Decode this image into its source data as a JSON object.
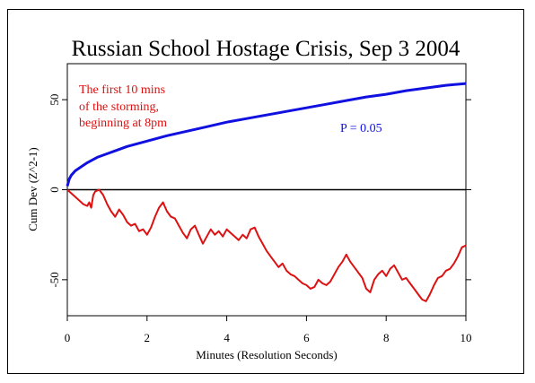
{
  "chart_data": {
    "type": "line",
    "title": "Russian School Hostage Crisis, Sep 3 2004",
    "xlabel": "Minutes (Resolution Seconds)",
    "ylabel": "Cum Dev (Z^2-1)",
    "xlim": [
      0,
      10
    ],
    "ylim": [
      -70,
      70
    ],
    "x_ticks": [
      "0",
      "2",
      "4",
      "6",
      "8",
      "10"
    ],
    "y_ticks": [
      "-50",
      "0",
      "50"
    ],
    "x_tick_values": [
      0,
      2,
      4,
      6,
      8,
      10
    ],
    "y_tick_values": [
      -50,
      0,
      50
    ],
    "grid": false,
    "zero_line": true,
    "annotations": {
      "red_text": [
        "The first 10 mins",
        "of the storming,",
        "beginning at 8pm"
      ],
      "blue_text": "P = 0.05"
    },
    "series": [
      {
        "color": "#1010e0",
        "x": [
          0,
          0.05,
          0.1,
          0.2,
          0.3,
          0.5,
          0.75,
          1.0,
          1.5,
          2.0,
          2.5,
          3.0,
          3.5,
          4.0,
          4.5,
          5.0,
          5.5,
          6.0,
          6.5,
          7.0,
          7.5,
          8.0,
          8.5,
          9.0,
          9.5,
          10.0
        ],
        "values": [
          2,
          6,
          8,
          10.5,
          12,
          15,
          18,
          20,
          24,
          27,
          30,
          32.5,
          35,
          37.5,
          39.5,
          41.5,
          43.5,
          45.5,
          47.5,
          49.5,
          51.5,
          53,
          55,
          56.5,
          58,
          59
        ]
      },
      {
        "color": "#dd1111",
        "x": [
          0,
          0.1,
          0.2,
          0.3,
          0.4,
          0.5,
          0.55,
          0.6,
          0.65,
          0.7,
          0.8,
          0.9,
          1.0,
          1.1,
          1.2,
          1.3,
          1.4,
          1.5,
          1.6,
          1.7,
          1.8,
          1.9,
          2.0,
          2.1,
          2.2,
          2.3,
          2.4,
          2.5,
          2.6,
          2.7,
          2.8,
          2.9,
          3.0,
          3.1,
          3.2,
          3.3,
          3.4,
          3.5,
          3.6,
          3.7,
          3.8,
          3.9,
          4.0,
          4.1,
          4.2,
          4.3,
          4.4,
          4.5,
          4.6,
          4.7,
          4.8,
          4.9,
          5.0,
          5.1,
          5.2,
          5.3,
          5.4,
          5.5,
          5.6,
          5.7,
          5.8,
          5.9,
          6.0,
          6.1,
          6.2,
          6.3,
          6.4,
          6.5,
          6.6,
          6.7,
          6.8,
          6.9,
          7.0,
          7.1,
          7.2,
          7.3,
          7.4,
          7.5,
          7.6,
          7.7,
          7.8,
          7.9,
          8.0,
          8.1,
          8.2,
          8.3,
          8.4,
          8.5,
          8.6,
          8.7,
          8.8,
          8.9,
          9.0,
          9.1,
          9.2,
          9.3,
          9.4,
          9.5,
          9.6,
          9.7,
          9.8,
          9.9,
          10.0
        ],
        "values": [
          0,
          -2,
          -4,
          -6,
          -8,
          -9,
          -7,
          -10,
          -3,
          -1,
          0,
          -3,
          -8,
          -12,
          -15,
          -11,
          -14,
          -18,
          -20,
          -19,
          -23,
          -22,
          -25,
          -21,
          -15,
          -10,
          -7,
          -12,
          -15,
          -16,
          -20,
          -24,
          -27,
          -22,
          -20,
          -25,
          -30,
          -26,
          -22,
          -25,
          -23,
          -26,
          -22,
          -24,
          -26,
          -28,
          -25,
          -27,
          -22,
          -21,
          -26,
          -30,
          -34,
          -37,
          -40,
          -43,
          -41,
          -45,
          -47,
          -48,
          -50,
          -52,
          -53,
          -55,
          -54,
          -50,
          -52,
          -53,
          -51,
          -47,
          -43,
          -40,
          -36,
          -40,
          -43,
          -46,
          -49,
          -55,
          -57,
          -50,
          -47,
          -45,
          -48,
          -44,
          -42,
          -46,
          -50,
          -49,
          -52,
          -55,
          -58,
          -61,
          -62,
          -58,
          -53,
          -49,
          -48,
          -45,
          -44,
          -41,
          -37,
          -32,
          -31
        ]
      }
    ]
  }
}
